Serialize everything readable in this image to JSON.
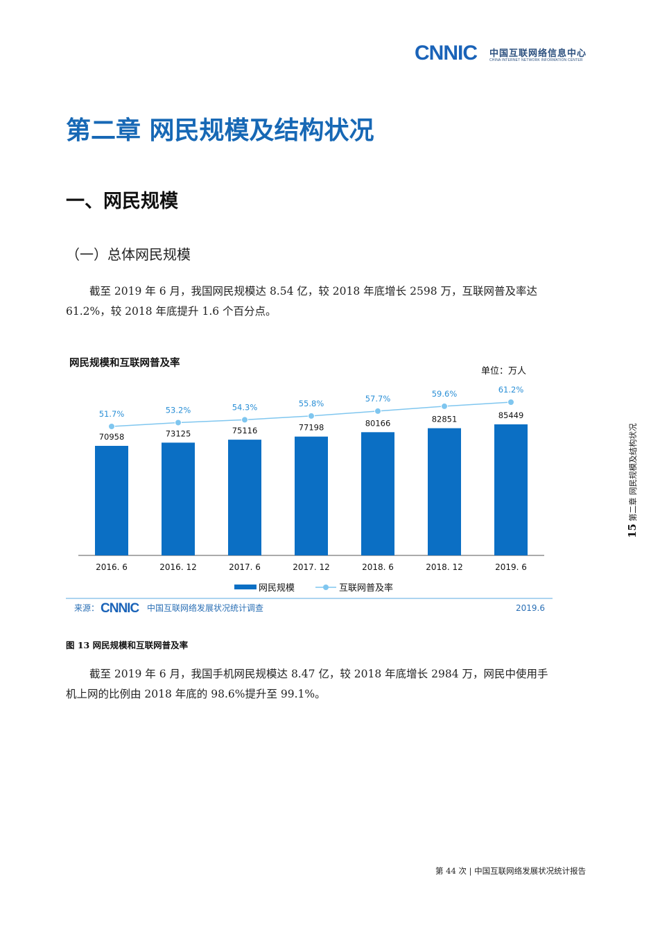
{
  "header": {
    "logo_text": "CNNIC",
    "logo_cn": "中国互联网络信息中心",
    "logo_en": "CHINA INTERNET NETWORK INFORMATION CENTER"
  },
  "chapter_title": "第二章  网民规模及结构状况",
  "section_title": "一、网民规模",
  "sub_title": "（一）总体网民规模",
  "paragraph_1": "截至 2019 年 6 月，我国网民规模达 8.54 亿，较 2018 年底增长 2598 万，互联网普及率达 61.2%，较 2018 年底提升 1.6 个百分点。",
  "chart_data": {
    "type": "bar",
    "title": "网民规模和互联网普及率",
    "unit": "单位：万人",
    "categories": [
      "2016. 6",
      "2016. 12",
      "2017. 6",
      "2017. 12",
      "2018. 6",
      "2018. 12",
      "2019. 6"
    ],
    "series": [
      {
        "name": "网民规模",
        "type": "bar",
        "values": [
          70958,
          73125,
          75116,
          77198,
          80166,
          82851,
          85449
        ]
      },
      {
        "name": "互联网普及率",
        "type": "line",
        "values": [
          51.7,
          53.2,
          54.3,
          55.8,
          57.7,
          59.6,
          61.2
        ],
        "labels": [
          "51.7%",
          "53.2%",
          "54.3%",
          "55.8%",
          "57.7%",
          "59.6%",
          "61.2%"
        ]
      }
    ],
    "source_prefix": "来源：",
    "source_logo": "CNNIC",
    "source_name": "中国互联网络发展状况统计调查",
    "source_date": "2019.6",
    "legend_position": "bottom",
    "colors": {
      "bar": "#0b6fc4",
      "line": "#7fc6ef",
      "line_label": "#2a8fd6"
    }
  },
  "figure_caption": "图 13    网民规模和互联网普及率",
  "paragraph_2": "截至 2019 年 6 月，我国手机网民规模达 8.47 亿，较 2018 年底增长 2984 万，网民中使用手机上网的比例由 2018 年底的 98.6%提升至 99.1%。",
  "side_tab": {
    "page_number": "15",
    "label": "第二章  网民规模及结构状况"
  },
  "footer": "第 44 次 | 中国互联网络发展状况统计报告"
}
